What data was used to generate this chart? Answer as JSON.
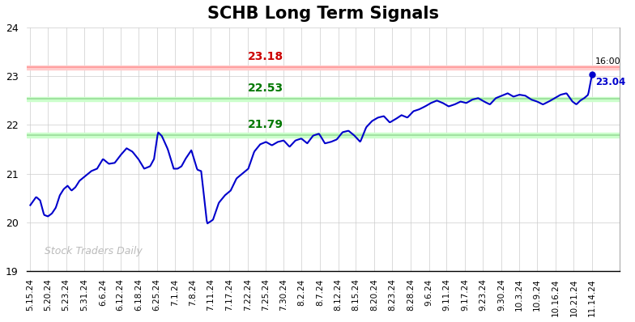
{
  "title": "SCHB Long Term Signals",
  "title_fontsize": 15,
  "title_fontweight": "bold",
  "background_color": "#ffffff",
  "line_color": "#0000cc",
  "line_width": 1.5,
  "ylim": [
    19,
    24
  ],
  "yticks": [
    19,
    20,
    21,
    22,
    23,
    24
  ],
  "hline_red": 23.18,
  "hline_green_upper": 22.53,
  "hline_green_lower": 21.79,
  "hline_red_color": "#ff9999",
  "hline_green_color": "#99dd99",
  "label_red_text": "23.18",
  "label_red_color": "#cc0000",
  "label_green_upper_text": "22.53",
  "label_green_lower_text": "21.79",
  "label_green_color": "#007700",
  "watermark": "Stock Traders Daily",
  "watermark_color": "#bbbbbb",
  "endpoint_label_time": "16:00",
  "endpoint_label_value": "23.04",
  "endpoint_value": 23.04,
  "endpoint_color": "#0000cc",
  "x_labels": [
    "5.15.24",
    "5.20.24",
    "5.23.24",
    "5.31.24",
    "6.6.24",
    "6.12.24",
    "6.18.24",
    "6.25.24",
    "7.1.24",
    "7.8.24",
    "7.11.24",
    "7.17.24",
    "7.22.24",
    "7.25.24",
    "7.30.24",
    "8.2.24",
    "8.7.24",
    "8.12.24",
    "8.15.24",
    "8.20.24",
    "8.23.24",
    "8.28.24",
    "9.6.24",
    "9.11.24",
    "9.17.24",
    "9.23.24",
    "9.30.24",
    "10.3.24",
    "10.9.24",
    "10.16.24",
    "10.21.24",
    "11.14.24"
  ],
  "price_points": [
    [
      0,
      20.35
    ],
    [
      3,
      20.52
    ],
    [
      5,
      20.45
    ],
    [
      7,
      20.15
    ],
    [
      9,
      20.12
    ],
    [
      11,
      20.18
    ],
    [
      13,
      20.3
    ],
    [
      15,
      20.55
    ],
    [
      17,
      20.68
    ],
    [
      19,
      20.75
    ],
    [
      21,
      20.65
    ],
    [
      23,
      20.72
    ],
    [
      25,
      20.85
    ],
    [
      28,
      20.95
    ],
    [
      31,
      21.05
    ],
    [
      34,
      21.1
    ],
    [
      37,
      21.3
    ],
    [
      40,
      21.2
    ],
    [
      43,
      21.22
    ],
    [
      46,
      21.38
    ],
    [
      49,
      21.52
    ],
    [
      52,
      21.45
    ],
    [
      55,
      21.3
    ],
    [
      58,
      21.1
    ],
    [
      61,
      21.15
    ],
    [
      63,
      21.3
    ],
    [
      65,
      21.85
    ],
    [
      67,
      21.77
    ],
    [
      70,
      21.5
    ],
    [
      73,
      21.1
    ],
    [
      75,
      21.1
    ],
    [
      77,
      21.15
    ],
    [
      79,
      21.3
    ],
    [
      82,
      21.48
    ],
    [
      85,
      21.08
    ],
    [
      87,
      21.05
    ],
    [
      90,
      19.97
    ],
    [
      93,
      20.05
    ],
    [
      96,
      20.4
    ],
    [
      99,
      20.55
    ],
    [
      102,
      20.65
    ],
    [
      105,
      20.9
    ],
    [
      108,
      21.0
    ],
    [
      111,
      21.1
    ],
    [
      114,
      21.45
    ],
    [
      117,
      21.6
    ],
    [
      120,
      21.65
    ],
    [
      123,
      21.58
    ],
    [
      126,
      21.65
    ],
    [
      129,
      21.68
    ],
    [
      132,
      21.55
    ],
    [
      135,
      21.68
    ],
    [
      138,
      21.72
    ],
    [
      141,
      21.62
    ],
    [
      144,
      21.78
    ],
    [
      147,
      21.82
    ],
    [
      150,
      21.62
    ],
    [
      153,
      21.65
    ],
    [
      156,
      21.7
    ],
    [
      159,
      21.85
    ],
    [
      162,
      21.88
    ],
    [
      165,
      21.78
    ],
    [
      168,
      21.65
    ],
    [
      171,
      21.95
    ],
    [
      174,
      22.08
    ],
    [
      177,
      22.15
    ],
    [
      180,
      22.18
    ],
    [
      183,
      22.05
    ],
    [
      186,
      22.12
    ],
    [
      189,
      22.2
    ],
    [
      192,
      22.15
    ],
    [
      195,
      22.28
    ],
    [
      198,
      22.32
    ],
    [
      201,
      22.38
    ],
    [
      204,
      22.45
    ],
    [
      207,
      22.5
    ],
    [
      210,
      22.45
    ],
    [
      213,
      22.38
    ],
    [
      216,
      22.42
    ],
    [
      219,
      22.48
    ],
    [
      222,
      22.45
    ],
    [
      225,
      22.52
    ],
    [
      228,
      22.55
    ],
    [
      231,
      22.48
    ],
    [
      234,
      22.42
    ],
    [
      237,
      22.55
    ],
    [
      240,
      22.6
    ],
    [
      243,
      22.65
    ],
    [
      246,
      22.58
    ],
    [
      249,
      22.62
    ],
    [
      252,
      22.6
    ],
    [
      255,
      22.52
    ],
    [
      258,
      22.48
    ],
    [
      261,
      22.42
    ],
    [
      264,
      22.48
    ],
    [
      267,
      22.55
    ],
    [
      270,
      22.62
    ],
    [
      273,
      22.65
    ],
    [
      276,
      22.48
    ],
    [
      278,
      22.42
    ],
    [
      280,
      22.5
    ],
    [
      282,
      22.55
    ],
    [
      284,
      22.62
    ],
    [
      286,
      23.04
    ]
  ]
}
